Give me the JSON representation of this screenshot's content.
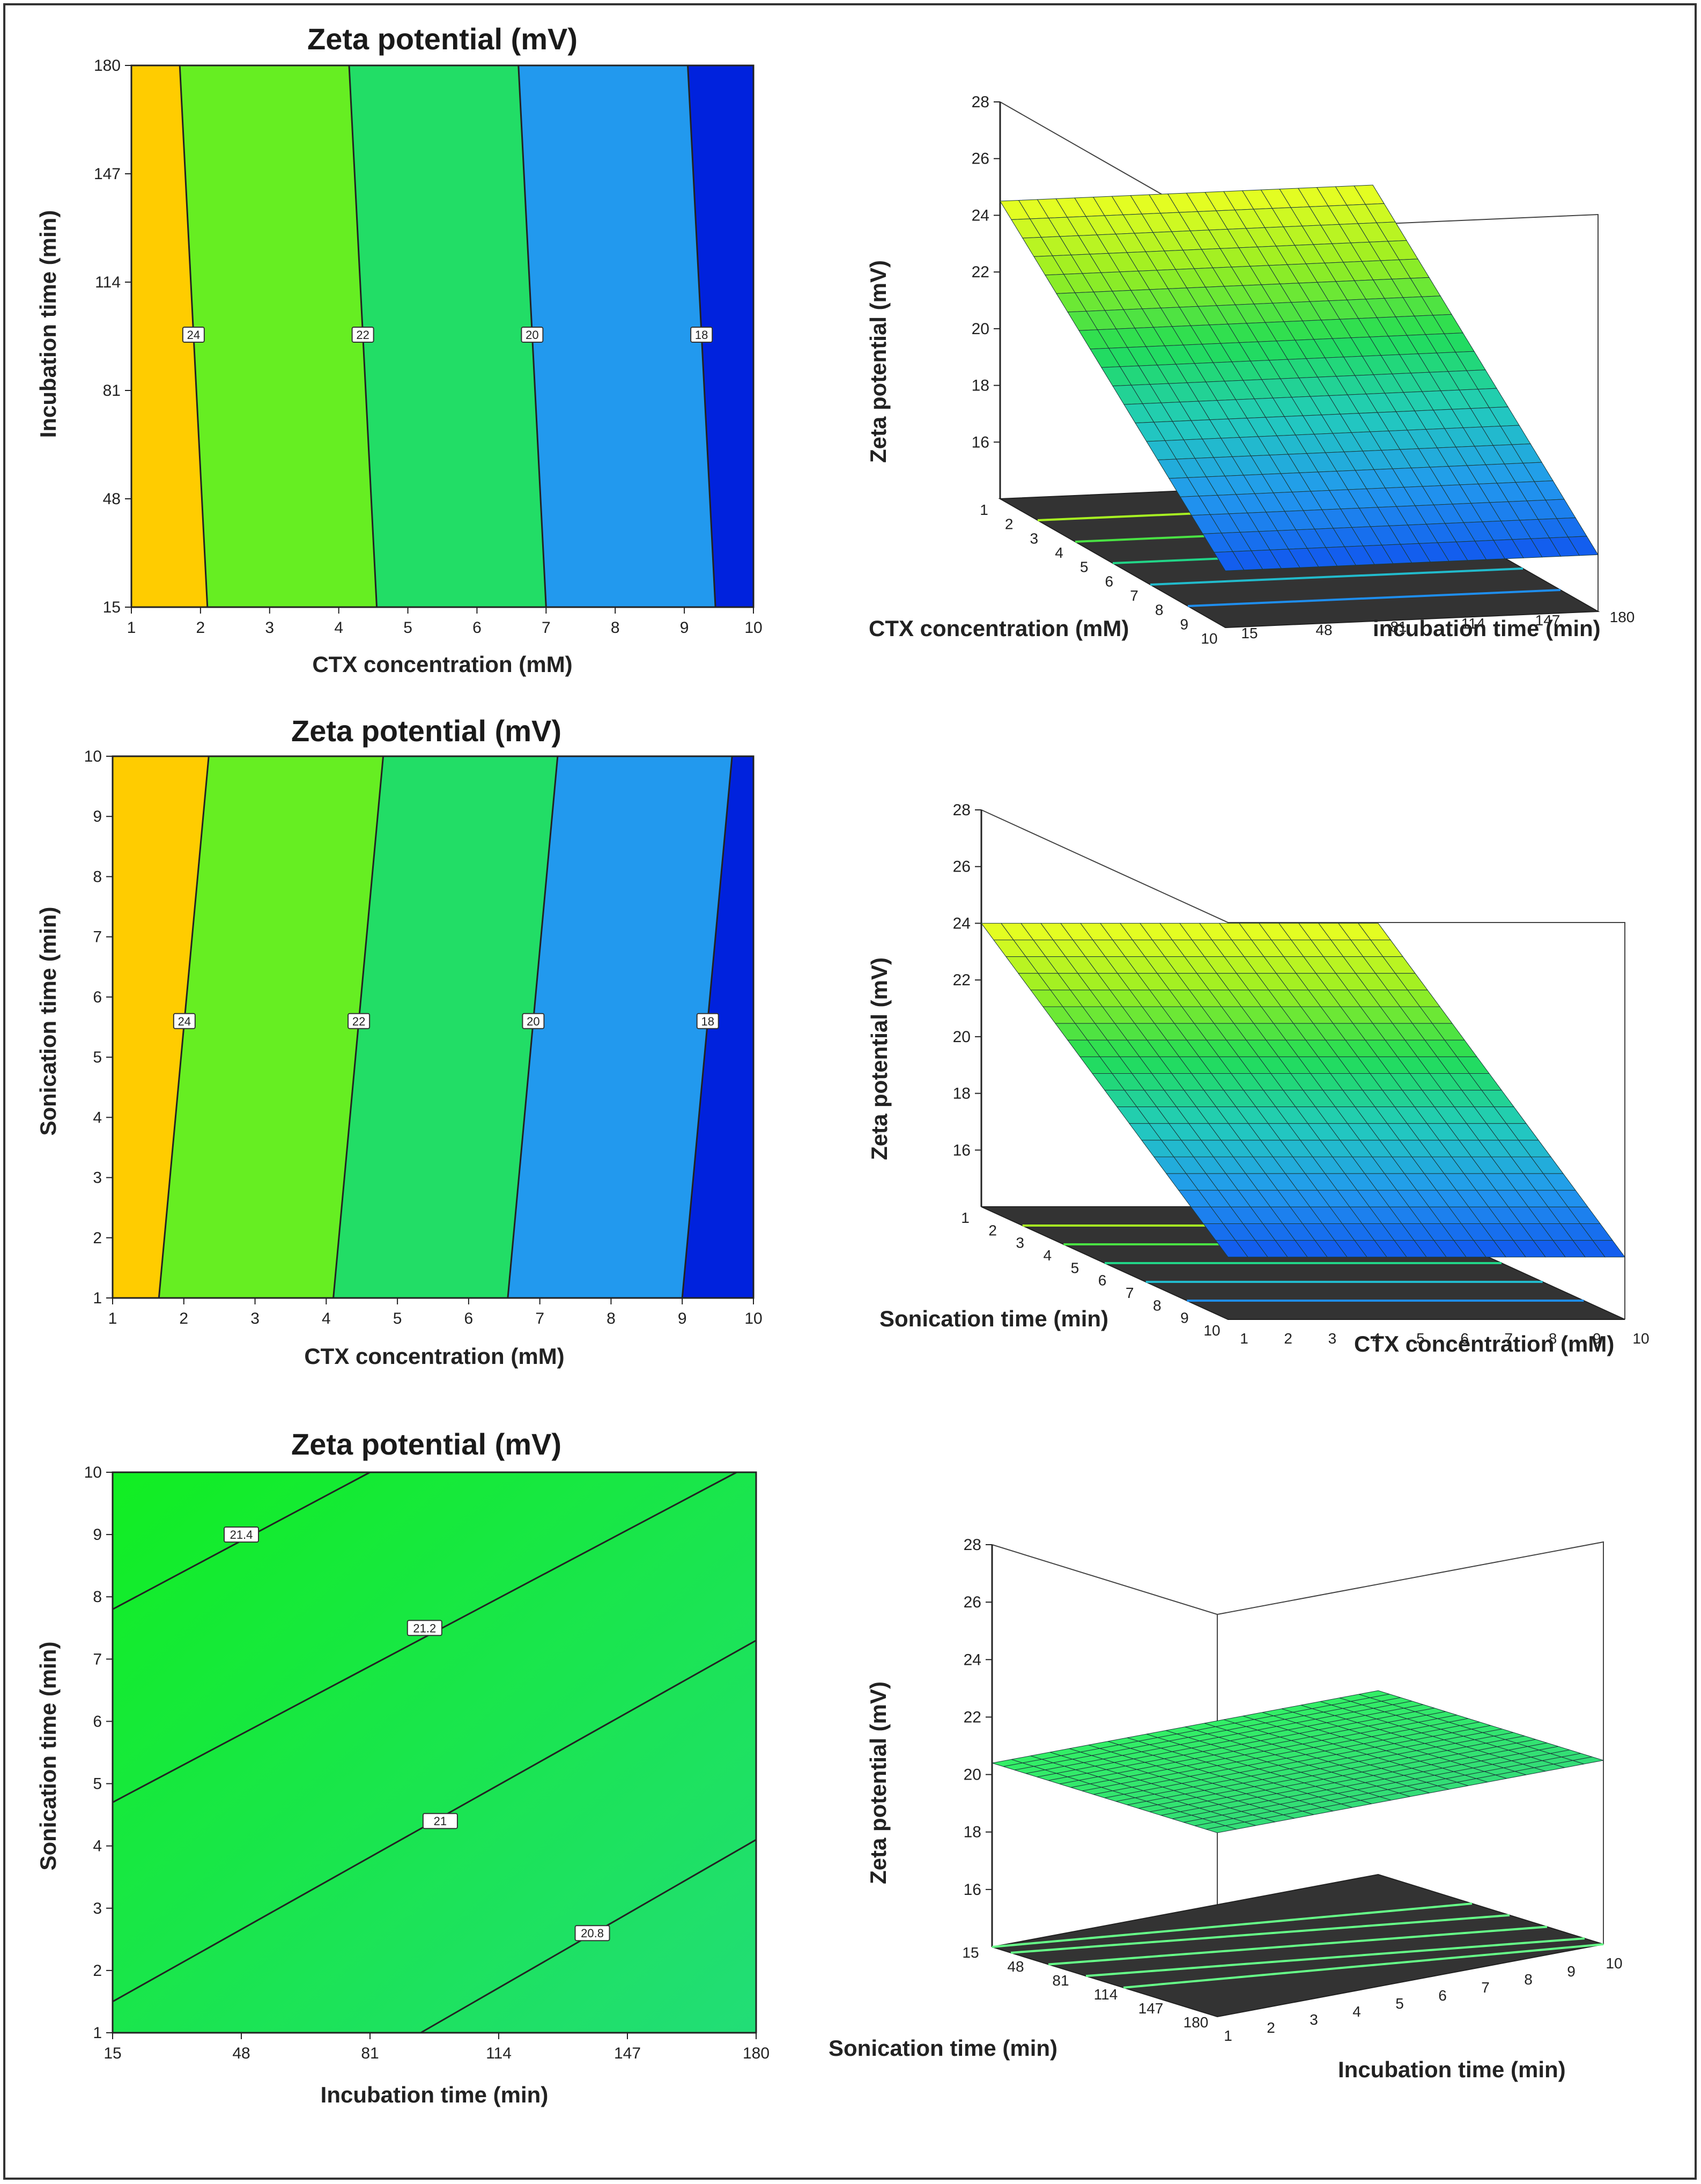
{
  "chart_data": [
    {
      "type": "contour",
      "title": "Zeta potential (mV)",
      "xlabel": "CTX concentration (mM)",
      "ylabel": "Incubation time (min)",
      "x_ticks": [
        "1",
        "2",
        "3",
        "4",
        "5",
        "6",
        "7",
        "8",
        "9",
        "10"
      ],
      "y_ticks": [
        "15",
        "48",
        "81",
        "114",
        "147",
        "180"
      ],
      "xlim": [
        1,
        10
      ],
      "ylim": [
        15,
        180
      ],
      "contour_labels": [
        "24",
        "22",
        "20",
        "18"
      ],
      "contour_lines": [
        {
          "label": "24",
          "bottom_x": 2.1,
          "top_x": 1.7
        },
        {
          "label": "22",
          "bottom_x": 4.55,
          "top_x": 4.15
        },
        {
          "label": "20",
          "bottom_x": 7.0,
          "top_x": 6.6
        },
        {
          "label": "18",
          "bottom_x": 9.45,
          "top_x": 9.05
        }
      ],
      "label_y": 98
    },
    {
      "type": "surface",
      "zlabel": "Zeta potential (mV)",
      "x1label": "CTX concentration (mM)",
      "x2label": "incubation time (min)",
      "x1_ticks": [
        "1",
        "2",
        "3",
        "4",
        "5",
        "6",
        "7",
        "8",
        "9",
        "10"
      ],
      "x2_ticks": [
        "15",
        "48",
        "81",
        "114",
        "147",
        "180"
      ],
      "z_ticks": [
        "16",
        "18",
        "20",
        "22",
        "24",
        "26",
        "28"
      ],
      "zlim": [
        14,
        28
      ],
      "surface": {
        "z_at_x1_min": 24.5,
        "z_at_x1_max": 16.0
      }
    },
    {
      "type": "contour",
      "title": "Zeta potential (mV)",
      "xlabel": "CTX concentration (mM)",
      "ylabel": "Sonication time (min)",
      "x_ticks": [
        "1",
        "2",
        "3",
        "4",
        "5",
        "6",
        "7",
        "8",
        "9",
        "10"
      ],
      "y_ticks": [
        "1",
        "2",
        "3",
        "4",
        "5",
        "6",
        "7",
        "8",
        "9",
        "10"
      ],
      "xlim": [
        1,
        10
      ],
      "ylim": [
        1,
        10
      ],
      "contour_labels": [
        "24",
        "22",
        "20",
        "18"
      ],
      "contour_lines": [
        {
          "label": "24",
          "bottom_x": 1.65,
          "top_x": 2.35
        },
        {
          "label": "22",
          "bottom_x": 4.1,
          "top_x": 4.8
        },
        {
          "label": "20",
          "bottom_x": 6.55,
          "top_x": 7.25
        },
        {
          "label": "18",
          "bottom_x": 9.0,
          "top_x": 9.7
        }
      ],
      "label_y": 5.6
    },
    {
      "type": "surface",
      "zlabel": "Zeta potential (mV)",
      "x1label": "Sonication time (min)",
      "x2label": "CTX concentration (mM)",
      "x1_ticks": [
        "1",
        "2",
        "3",
        "4",
        "5",
        "6",
        "7",
        "8",
        "9",
        "10"
      ],
      "x2_ticks": [
        "1",
        "2",
        "3",
        "4",
        "5",
        "6",
        "7",
        "8",
        "9",
        "10"
      ],
      "z_ticks": [
        "16",
        "18",
        "20",
        "22",
        "24",
        "26",
        "28"
      ],
      "zlim": [
        14,
        28
      ],
      "surface": {
        "z_at_x1_min": 24.0,
        "z_at_x1_max": 16.2
      }
    },
    {
      "type": "contour",
      "title": "Zeta potential (mV)",
      "xlabel": "Incubation time (min)",
      "ylabel": "Sonication time (min)",
      "x_ticks": [
        "15",
        "48",
        "81",
        "114",
        "147",
        "180"
      ],
      "y_ticks": [
        "1",
        "2",
        "3",
        "4",
        "5",
        "6",
        "7",
        "8",
        "9",
        "10"
      ],
      "xlim": [
        15,
        180
      ],
      "ylim": [
        1,
        10
      ],
      "contour_labels": [
        "21.4",
        "21.2",
        "21",
        "20.8"
      ],
      "contour_lines": [
        {
          "label": "21.4",
          "p1": [
            15,
            7.8
          ],
          "p2": [
            81,
            10
          ],
          "label_at": [
            48,
            9.0
          ]
        },
        {
          "label": "21.2",
          "p1": [
            15,
            4.7
          ],
          "p2": [
            175,
            10
          ],
          "label_at": [
            95,
            7.5
          ]
        },
        {
          "label": "21",
          "p1": [
            15,
            1.5
          ],
          "p2": [
            180,
            7.3
          ],
          "label_at": [
            99,
            4.4
          ]
        },
        {
          "label": "20.8",
          "p1": [
            94,
            1.0
          ],
          "p2": [
            180,
            4.1
          ],
          "label_at": [
            138,
            2.6
          ]
        }
      ]
    },
    {
      "type": "surface",
      "zlabel": "Zeta potential (mV)",
      "x1label": "Sonication time (min)",
      "x2label": "Incubation time (min)",
      "x1_ticks": [
        "15",
        "48",
        "81",
        "114",
        "147",
        "180"
      ],
      "x2_ticks": [
        "1",
        "2",
        "3",
        "4",
        "5",
        "6",
        "7",
        "8",
        "9",
        "10"
      ],
      "z_ticks": [
        "16",
        "18",
        "20",
        "22",
        "24",
        "26",
        "28"
      ],
      "zlim": [
        14,
        28
      ],
      "surface": {
        "z_at_x1_min": 20.4,
        "z_at_x1_max": 20.4
      }
    }
  ]
}
